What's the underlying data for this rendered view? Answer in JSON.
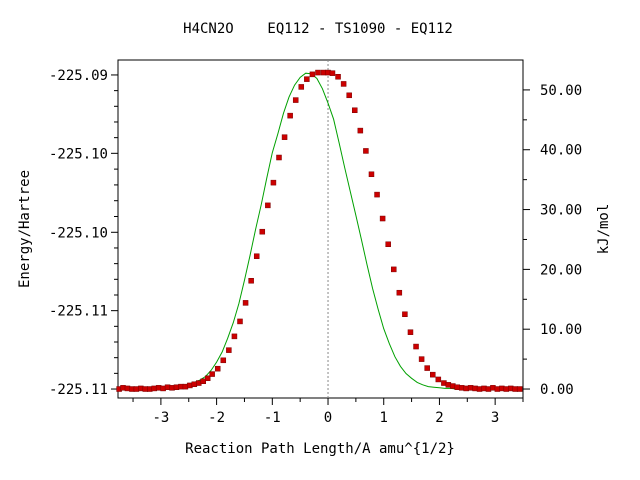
{
  "chart_data": {
    "type": "scatter",
    "title": "H4CN2O    EQ112 - TS1090 - EQ112",
    "xlabel": "Reaction Path Length/A amu^{1/2}",
    "ylabel_left": "Energy/Hartree",
    "ylabel_right": "kJ/mol",
    "xlim": [
      -3.77,
      3.5
    ],
    "ylim_kjmol": [
      -1.5,
      55.0
    ],
    "x_ticks": [
      {
        "value": -3,
        "label": "-3"
      },
      {
        "value": -2,
        "label": "-2"
      },
      {
        "value": -1,
        "label": "-1"
      },
      {
        "value": 0,
        "label": "0"
      },
      {
        "value": 1,
        "label": "1"
      },
      {
        "value": 2,
        "label": "2"
      },
      {
        "value": 3,
        "label": "3"
      }
    ],
    "y_left_ticks": [
      {
        "value_kjmol": 52.5,
        "label": "-225.09"
      },
      {
        "value_kjmol": 39.4,
        "label": "-225.10"
      },
      {
        "value_kjmol": 26.2,
        "label": "-225.10"
      },
      {
        "value_kjmol": 13.1,
        "label": "-225.11"
      },
      {
        "value_kjmol": 0.0,
        "label": "-225.11"
      }
    ],
    "y_right_ticks": [
      {
        "value": 50,
        "label": "50.00"
      },
      {
        "value": 40,
        "label": "40.00"
      },
      {
        "value": 30,
        "label": "30.00"
      },
      {
        "value": 20,
        "label": "20.00"
      },
      {
        "value": 10,
        "label": "10.00"
      },
      {
        "value": 0,
        "label": "0.00"
      }
    ],
    "ts_marker_x": 0.0,
    "series": [
      {
        "style": "line",
        "color": "#00a000",
        "x": [
          -3.75,
          -3.6,
          -3.4,
          -3.2,
          -3.0,
          -2.8,
          -2.6,
          -2.4,
          -2.3,
          -2.2,
          -2.1,
          -2.0,
          -1.9,
          -1.8,
          -1.7,
          -1.6,
          -1.5,
          -1.4,
          -1.3,
          -1.2,
          -1.1,
          -1.0,
          -0.9,
          -0.8,
          -0.7,
          -0.6,
          -0.5,
          -0.4,
          -0.3,
          -0.2,
          -0.1,
          0.0,
          0.1,
          0.2,
          0.3,
          0.4,
          0.5,
          0.6,
          0.7,
          0.8,
          0.9,
          1.0,
          1.1,
          1.2,
          1.3,
          1.4,
          1.5,
          1.6,
          1.7,
          1.8,
          1.9,
          2.0,
          2.1,
          2.2,
          2.3,
          2.4,
          2.6,
          2.8,
          3.0,
          3.2,
          3.45
        ],
        "y": [
          0.0,
          0.1,
          0.0,
          0.1,
          0.3,
          0.4,
          0.6,
          1.1,
          1.5,
          2.1,
          3.1,
          4.5,
          6.2,
          8.5,
          11.1,
          14.3,
          18.2,
          22.3,
          26.7,
          30.8,
          35.2,
          39.5,
          42.7,
          46.1,
          48.8,
          50.8,
          52.1,
          52.8,
          52.7,
          51.9,
          50.2,
          47.8,
          45.1,
          41.1,
          37.0,
          33.0,
          29.0,
          25.0,
          20.8,
          16.8,
          13.3,
          10.1,
          7.6,
          5.4,
          3.8,
          2.6,
          1.8,
          1.1,
          0.7,
          0.4,
          0.3,
          0.2,
          0.1,
          0.1,
          0.0,
          0.0,
          0.0,
          0.0,
          0.0,
          0.0,
          0.0
        ]
      },
      {
        "style": "points",
        "color": "#cc0000",
        "x": [
          -3.75,
          -3.68,
          -3.6,
          -3.52,
          -3.44,
          -3.36,
          -3.28,
          -3.2,
          -3.12,
          -3.04,
          -2.96,
          -2.88,
          -2.8,
          -2.72,
          -2.64,
          -2.56,
          -2.48,
          -2.4,
          -2.32,
          -2.24,
          -2.16,
          -2.08,
          -1.98,
          -1.88,
          -1.78,
          -1.68,
          -1.58,
          -1.48,
          -1.38,
          -1.28,
          -1.18,
          -1.08,
          -0.98,
          -0.88,
          -0.78,
          -0.68,
          -0.58,
          -0.48,
          -0.38,
          -0.28,
          -0.18,
          -0.08,
          0.0,
          0.08,
          0.18,
          0.28,
          0.38,
          0.48,
          0.58,
          0.68,
          0.78,
          0.88,
          0.98,
          1.08,
          1.18,
          1.28,
          1.38,
          1.48,
          1.58,
          1.68,
          1.78,
          1.88,
          1.98,
          2.08,
          2.16,
          2.24,
          2.32,
          2.4,
          2.48,
          2.56,
          2.64,
          2.72,
          2.8,
          2.88,
          2.96,
          3.04,
          3.12,
          3.2,
          3.28,
          3.36,
          3.44
        ],
        "y": [
          0.0,
          0.2,
          0.1,
          0.0,
          0.0,
          0.1,
          0.0,
          0.0,
          0.1,
          0.2,
          0.1,
          0.3,
          0.2,
          0.3,
          0.4,
          0.4,
          0.6,
          0.8,
          1.0,
          1.3,
          1.8,
          2.5,
          3.4,
          4.8,
          6.5,
          8.8,
          11.3,
          14.4,
          18.1,
          22.2,
          26.3,
          30.7,
          34.5,
          38.7,
          42.1,
          45.7,
          48.3,
          50.5,
          51.8,
          52.6,
          52.9,
          52.9,
          52.9,
          52.8,
          52.2,
          51.0,
          49.1,
          46.6,
          43.2,
          39.8,
          35.9,
          32.5,
          28.5,
          24.2,
          20.0,
          16.1,
          12.5,
          9.5,
          7.1,
          5.0,
          3.5,
          2.4,
          1.6,
          1.0,
          0.7,
          0.5,
          0.3,
          0.2,
          0.1,
          0.2,
          0.1,
          0.0,
          0.1,
          0.0,
          0.2,
          0.0,
          0.1,
          0.0,
          0.1,
          0.0,
          0.0
        ]
      }
    ]
  }
}
